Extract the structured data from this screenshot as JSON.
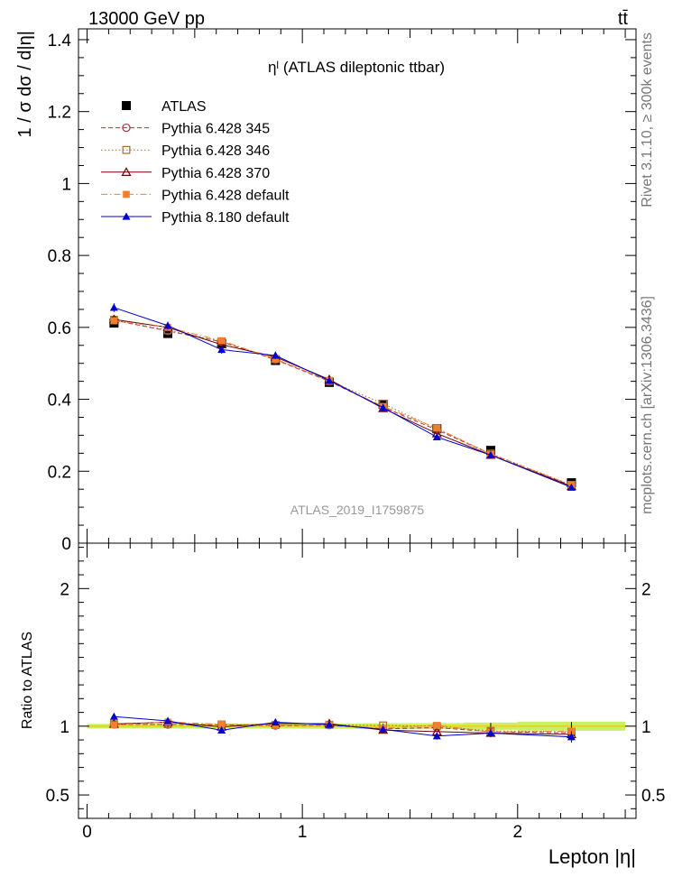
{
  "header": {
    "energy": "13000 GeV pp",
    "process": "tt̄"
  },
  "side": {
    "rivet": "Rivet 3.1.10, ≥ 300k events",
    "source": "mcplots.cern.ch [arXiv:1306.3436]"
  },
  "chart_data": {
    "type": "line",
    "title": "ηˡ (ATLAS dileptonic ttbar)",
    "watermark": "ATLAS_2019_I1759875",
    "xlabel": "Lepton |η|",
    "ylabel": "1 / σ  dσ / d|η|",
    "ratio_ylabel": "Ratio to ATLAS",
    "xlim": [
      -0.04,
      2.55
    ],
    "ylim": [
      0,
      1.43
    ],
    "ratio_ylim": [
      0.33,
      2.33
    ],
    "x_ticks": [
      0,
      1,
      2
    ],
    "y_ticks": [
      0,
      0.2,
      0.4,
      0.6,
      0.8,
      1,
      1.2,
      1.4
    ],
    "y_tick_labels": [
      "0",
      "0.2",
      "0.4",
      "0.6",
      "0.8",
      "1",
      "1.2",
      "1.4"
    ],
    "ratio_ticks": [
      0.5,
      1,
      2
    ],
    "ratio_tick_labels": [
      "0.5",
      "1",
      "2"
    ],
    "x": [
      0.125,
      0.375,
      0.625,
      0.875,
      1.125,
      1.375,
      1.625,
      1.875,
      2.25
    ],
    "x_edges": [
      0,
      0.25,
      0.5,
      0.75,
      1.0,
      1.25,
      1.5,
      1.75,
      2.0,
      2.5
    ],
    "series": [
      {
        "name": "ATLAS",
        "color": "#000000",
        "style": "data",
        "values": [
          0.612,
          0.583,
          0.555,
          0.508,
          0.447,
          0.386,
          0.318,
          0.258,
          0.168
        ],
        "errors": [
          0.008,
          0.008,
          0.008,
          0.007,
          0.007,
          0.007,
          0.006,
          0.006,
          0.005
        ],
        "ratio": [
          1,
          1,
          1,
          1,
          1,
          1,
          1,
          1,
          1
        ]
      },
      {
        "name": "Pythia 6.428 345",
        "color": "#b03040",
        "style": "dashed",
        "values": [
          0.62,
          0.59,
          0.56,
          0.51,
          0.45,
          0.378,
          0.315,
          0.248,
          0.16
        ],
        "ratio": [
          1.013,
          1.012,
          1.01,
          1.005,
          1.007,
          0.98,
          0.99,
          0.96,
          0.95
        ]
      },
      {
        "name": "Pythia 6.428 346",
        "color": "#a07030",
        "style": "dotted",
        "values": [
          0.621,
          0.592,
          0.561,
          0.512,
          0.451,
          0.388,
          0.318,
          0.249,
          0.162
        ],
        "ratio": [
          1.014,
          1.015,
          1.012,
          1.008,
          1.01,
          1.005,
          1.0,
          0.965,
          0.96
        ]
      },
      {
        "name": "Pythia 6.428 370",
        "color": "#700000",
        "style": "solid",
        "values": [
          0.622,
          0.6,
          0.552,
          0.518,
          0.455,
          0.375,
          0.305,
          0.245,
          0.158
        ],
        "ratio": [
          1.016,
          1.029,
          0.995,
          1.02,
          1.018,
          0.972,
          0.96,
          0.95,
          0.94
        ]
      },
      {
        "name": "Pythia 6.428 default",
        "color": "#f08030",
        "style": "dashdot",
        "values": [
          0.618,
          0.6,
          0.563,
          0.512,
          0.452,
          0.38,
          0.32,
          0.247,
          0.162
        ],
        "ratio": [
          1.01,
          1.03,
          1.014,
          1.008,
          1.01,
          0.984,
          1.006,
          0.957,
          0.964
        ]
      },
      {
        "name": "Pythia 8.180 default",
        "color": "#0000cc",
        "style": "solid",
        "values": [
          0.655,
          0.605,
          0.538,
          0.522,
          0.452,
          0.377,
          0.295,
          0.245,
          0.155
        ],
        "errors": [
          0.012,
          0.011,
          0.011,
          0.01,
          0.01,
          0.009,
          0.008,
          0.008,
          0.007
        ],
        "ratio": [
          1.07,
          1.038,
          0.97,
          1.028,
          1.011,
          0.977,
          0.928,
          0.95,
          0.922
        ]
      }
    ]
  }
}
